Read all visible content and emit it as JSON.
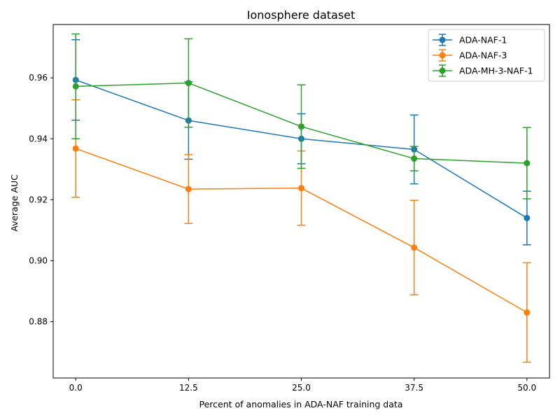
{
  "chart_data": {
    "type": "line",
    "title": "Ionosphere dataset",
    "xlabel": "Percent of anomalies in ADA-NAF training data",
    "ylabel": "Average AUC",
    "x": [
      0.0,
      12.5,
      25.0,
      37.5,
      50.0
    ],
    "x_tick_labels": [
      "0.0",
      "12.5",
      "25.0",
      "37.5",
      "50.0"
    ],
    "xlim": [
      -2.5,
      52.5
    ],
    "ylim": [
      0.8615,
      0.9775
    ],
    "y_ticks": [
      0.88,
      0.9,
      0.92,
      0.94,
      0.96
    ],
    "y_tick_labels": [
      "0.88",
      "0.90",
      "0.92",
      "0.94",
      "0.96"
    ],
    "grid": false,
    "legend_position": "top-right",
    "series": [
      {
        "name": "ADA-NAF-1",
        "color": "#1f77b4",
        "values": [
          0.9593,
          0.946,
          0.94,
          0.9365,
          0.914
        ],
        "errors": [
          0.0132,
          0.0127,
          0.0082,
          0.0113,
          0.0088
        ]
      },
      {
        "name": "ADA-NAF-3",
        "color": "#ff7f0e",
        "values": [
          0.9368,
          0.9235,
          0.9238,
          0.9043,
          0.883
        ],
        "errors": [
          0.016,
          0.0113,
          0.0122,
          0.0155,
          0.0163
        ]
      },
      {
        "name": "ADA-MH-3-NAF-1",
        "color": "#2ca02c",
        "values": [
          0.9572,
          0.9583,
          0.944,
          0.9335,
          0.932
        ],
        "errors": [
          0.0172,
          0.0145,
          0.0137,
          0.004,
          0.0117
        ]
      }
    ]
  }
}
